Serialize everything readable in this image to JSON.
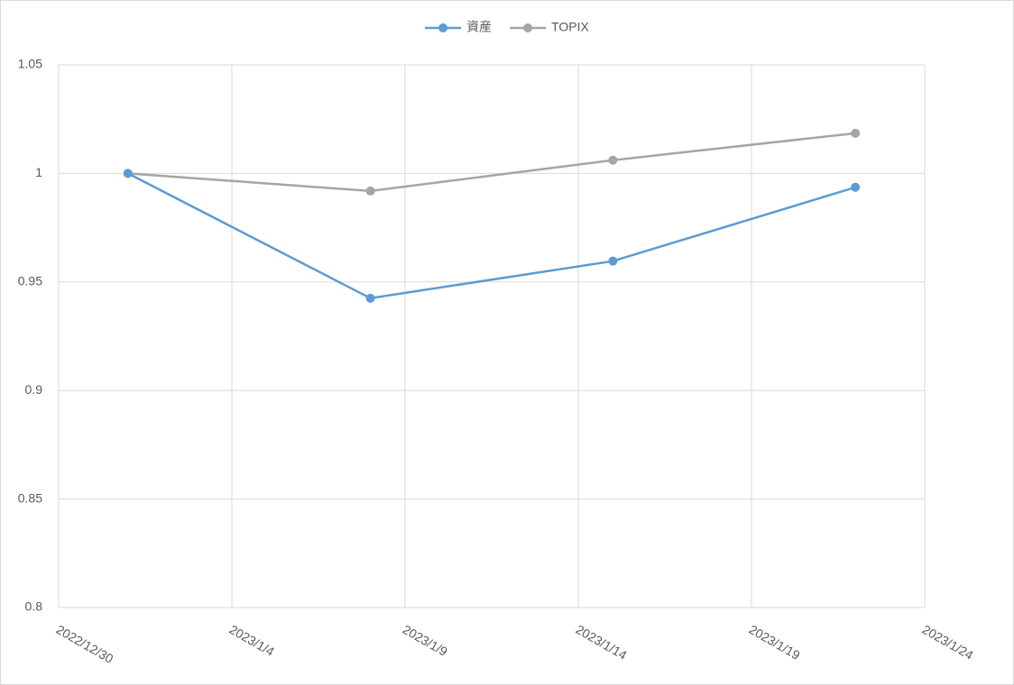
{
  "chart_data": {
    "type": "line",
    "x": [
      "2023/1/1",
      "2023/1/8",
      "2023/1/15",
      "2023/1/22"
    ],
    "series": [
      {
        "name": "資産",
        "color": "#5b9bd5",
        "values": [
          1.0,
          0.9425,
          0.9596,
          0.9936
        ]
      },
      {
        "name": "TOPIX",
        "color": "#a5a5a5",
        "values": [
          1.0,
          0.9919,
          1.0061,
          1.0185
        ]
      }
    ],
    "xlim": [
      "2022/12/30",
      "2023/1/24"
    ],
    "xticks": [
      "2022/12/30",
      "2023/1/4",
      "2023/1/9",
      "2023/1/14",
      "2023/1/19",
      "2023/1/24"
    ],
    "ylim": [
      0.8,
      1.05
    ],
    "yticks": [
      0.8,
      0.85,
      0.9,
      0.95,
      1,
      1.05
    ],
    "grid": true,
    "legend": "top"
  }
}
